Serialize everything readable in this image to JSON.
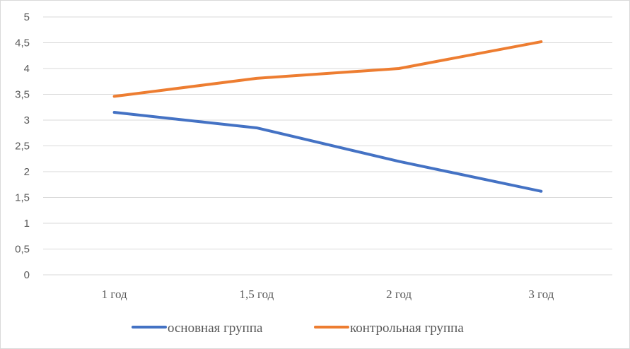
{
  "chart_data": {
    "type": "line",
    "categories": [
      "1 год",
      "1,5 год",
      "2 год",
      "3 год"
    ],
    "series": [
      {
        "name": "основная группа",
        "values": [
          3.15,
          2.85,
          2.2,
          1.62
        ],
        "color": "#4472C4"
      },
      {
        "name": "контрольная группа",
        "values": [
          3.46,
          3.81,
          4.0,
          4.52
        ],
        "color": "#ED7D31"
      }
    ],
    "ylim": [
      0,
      5
    ],
    "y_ticks": [
      "0",
      "0,5",
      "1",
      "1,5",
      "2",
      "2,5",
      "3",
      "3,5",
      "4",
      "4,5",
      "5"
    ],
    "grid": true,
    "legend_position": "bottom"
  }
}
